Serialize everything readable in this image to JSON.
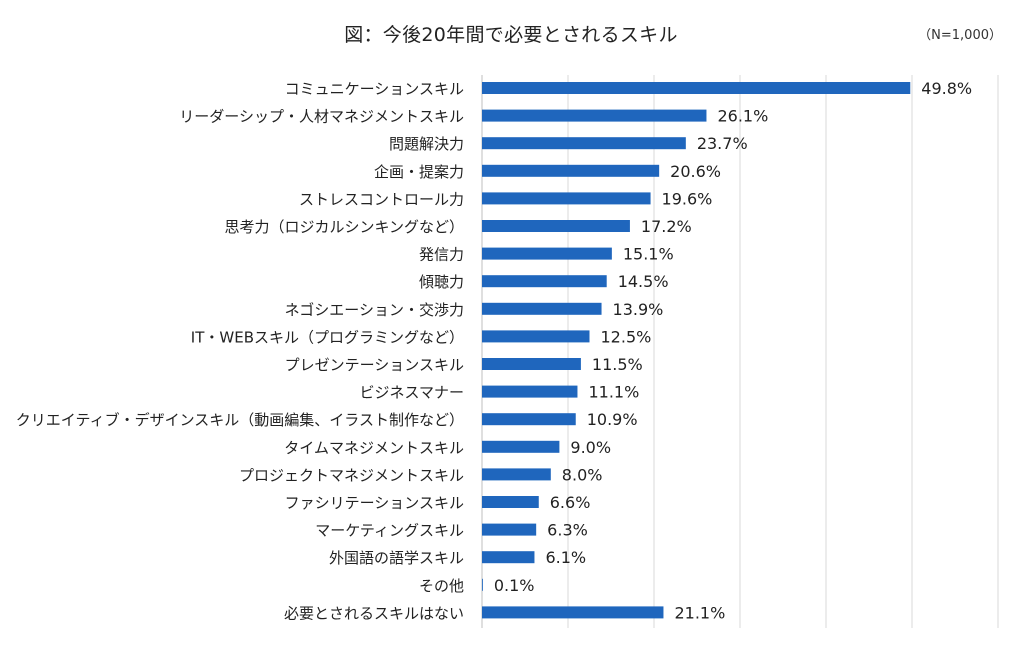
{
  "chart_data": {
    "type": "bar",
    "orientation": "horizontal",
    "title": "図：今後20年間で必要とされるスキル",
    "note": "（N=1,000）",
    "xlabel": "",
    "ylabel": "",
    "xlim": [
      0,
      60
    ],
    "grid": true,
    "value_suffix": "%",
    "bar_color": "#1f66bd",
    "grid_color": "#d9d9d9",
    "categories": [
      "コミュニケーションスキル",
      "リーダーシップ・人材マネジメントスキル",
      "問題解決力",
      "企画・提案力",
      "ストレスコントロール力",
      "思考力（ロジカルシンキングなど）",
      "発信力",
      "傾聴力",
      "ネゴシエーション・交渉力",
      "IT・WEBスキル（プログラミングなど）",
      "プレゼンテーションスキル",
      "ビジネスマナー",
      "クリエイティブ・デザインスキル（動画編集、イラスト制作など）",
      "タイムマネジメントスキル",
      "プロジェクトマネジメントスキル",
      "ファシリテーションスキル",
      "マーケティングスキル",
      "外国語の語学スキル",
      "その他",
      "必要とされるスキルはない"
    ],
    "values": [
      49.8,
      26.1,
      23.7,
      20.6,
      19.6,
      17.2,
      15.1,
      14.5,
      13.9,
      12.5,
      11.5,
      11.1,
      10.9,
      9.0,
      8.0,
      6.6,
      6.3,
      6.1,
      0.1,
      21.1
    ],
    "value_labels": [
      "49.8%",
      "26.1%",
      "23.7%",
      "20.6%",
      "19.6%",
      "17.2%",
      "15.1%",
      "14.5%",
      "13.9%",
      "12.5%",
      "11.5%",
      "11.1%",
      "10.9%",
      "9.0%",
      "8.0%",
      "6.6%",
      "6.3%",
      "6.1%",
      "0.1%",
      "21.1%"
    ]
  }
}
